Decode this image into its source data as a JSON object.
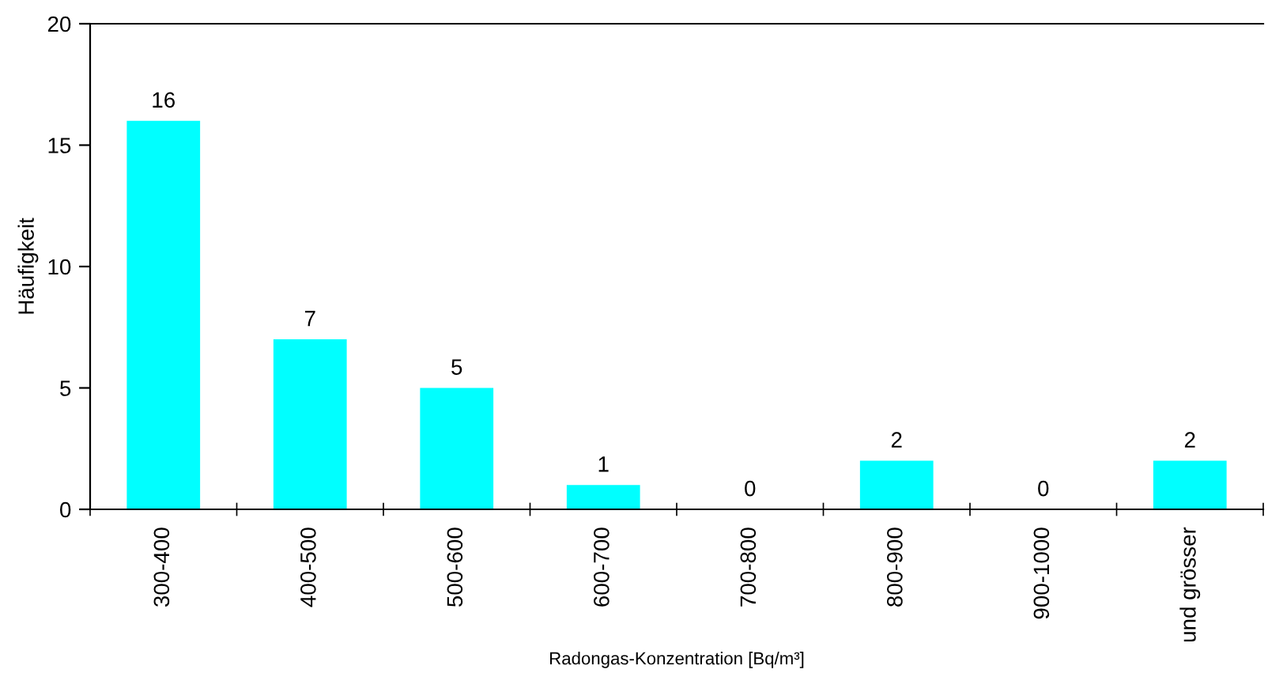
{
  "chart_data": {
    "type": "bar",
    "xlabel": "Radongas-Konzentration [Bq/m³]",
    "ylabel": "Häufigkeit",
    "categories": [
      "300-400",
      "400-500",
      "500-600",
      "600-700",
      "700-800",
      "800-900",
      "900-1000",
      "und grösser"
    ],
    "values": [
      16,
      7,
      5,
      1,
      0,
      2,
      0,
      2
    ],
    "color": "#00ffff",
    "ylim": [
      0,
      20
    ],
    "yticks": [
      0,
      5,
      10,
      15,
      20
    ],
    "grid": false,
    "data_labels": true
  }
}
